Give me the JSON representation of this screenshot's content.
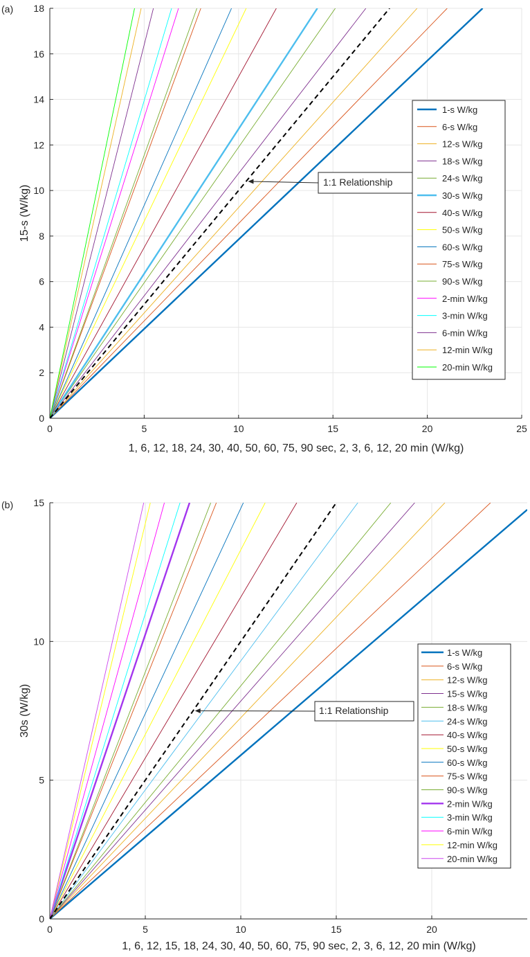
{
  "chart_data": [
    {
      "panel_label": "(a)",
      "type": "line",
      "xlabel": "1, 6, 12, 18, 24, 30, 40, 50, 60, 75, 90 sec, 2, 3, 6, 12, 20 min (W/kg)",
      "ylabel": "15-s (W/kg)",
      "xlim": [
        0,
        25
      ],
      "ylim": [
        0,
        18
      ],
      "xticks": [
        0,
        5,
        10,
        15,
        20,
        25
      ],
      "yticks": [
        0,
        2,
        4,
        6,
        8,
        10,
        12,
        14,
        16,
        18
      ],
      "grid": true,
      "legend_position": "right",
      "annotation": {
        "text": "1:1 Relationship",
        "arrow_to": [
          10.5,
          10.4
        ]
      },
      "reference_line": {
        "name": "1:1 Relationship",
        "slope": 1,
        "x_end": 18,
        "color": "#000000",
        "dashed": true
      },
      "series": [
        {
          "name": "1-s W/kg",
          "slope": 0.785,
          "color": "#0072BD",
          "bold": true
        },
        {
          "name": "6-s W/kg",
          "slope": 0.855,
          "color": "#D95319"
        },
        {
          "name": "12-s W/kg",
          "slope": 0.925,
          "color": "#EDB120"
        },
        {
          "name": "18-s W/kg",
          "slope": 1.075,
          "color": "#7E2F8E"
        },
        {
          "name": "24-s W/kg",
          "slope": 1.19,
          "color": "#77AC30"
        },
        {
          "name": "30-s W/kg",
          "slope": 1.27,
          "color": "#4DBEEE",
          "bold": true
        },
        {
          "name": "40-s W/kg",
          "slope": 1.5,
          "color": "#A2142F"
        },
        {
          "name": "50-s W/kg",
          "slope": 1.73,
          "color": "#FFFF00"
        },
        {
          "name": "60-s W/kg",
          "slope": 1.87,
          "color": "#0072BD"
        },
        {
          "name": "75-s W/kg",
          "slope": 2.25,
          "color": "#D95319"
        },
        {
          "name": "90-s W/kg",
          "slope": 2.31,
          "color": "#77AC30"
        },
        {
          "name": "2-min W/kg",
          "slope": 2.64,
          "color": "#FF00FF"
        },
        {
          "name": "3-min W/kg",
          "slope": 2.79,
          "color": "#00FFFF"
        },
        {
          "name": "6-min W/kg",
          "slope": 3.28,
          "color": "#7E2F8E"
        },
        {
          "name": "12-min W/kg",
          "slope": 3.72,
          "color": "#EDB120"
        },
        {
          "name": "20-min W/kg",
          "slope": 4.01,
          "color": "#00FF00"
        }
      ]
    },
    {
      "panel_label": "(b)",
      "type": "line",
      "xlabel": "1, 6, 12, 15, 18, 24, 30, 40, 50, 60, 75, 90 sec, 2, 3, 6, 12, 20 min (W/kg)",
      "ylabel": "30s (W/kg)",
      "xlim": [
        0,
        25
      ],
      "ylim": [
        0,
        15
      ],
      "xticks": [
        0,
        5,
        10,
        15,
        20
      ],
      "yticks": [
        0,
        5,
        10,
        15
      ],
      "grid": true,
      "legend_position": "right",
      "annotation": {
        "text": "1:1 Relationship",
        "arrow_to": [
          7.6,
          7.5
        ]
      },
      "reference_line": {
        "name": "1:1 Relationship",
        "slope": 1,
        "x_end": 15,
        "color": "#000000",
        "dashed": true
      },
      "series": [
        {
          "name": "1-s W/kg",
          "slope": 0.59,
          "color": "#0072BD",
          "bold": true
        },
        {
          "name": "6-s W/kg",
          "slope": 0.65,
          "color": "#D95319"
        },
        {
          "name": "12-s W/kg",
          "slope": 0.725,
          "color": "#EDB120"
        },
        {
          "name": "15-s W/kg",
          "slope": 0.785,
          "color": "#7E2F8E"
        },
        {
          "name": "18-s W/kg",
          "slope": 0.84,
          "color": "#77AC30"
        },
        {
          "name": "24-s W/kg",
          "slope": 0.93,
          "color": "#4DBEEE"
        },
        {
          "name": "40-s W/kg",
          "slope": 1.16,
          "color": "#A2142F"
        },
        {
          "name": "50-s W/kg",
          "slope": 1.33,
          "color": "#FFFF00"
        },
        {
          "name": "60-s W/kg",
          "slope": 1.48,
          "color": "#0072BD"
        },
        {
          "name": "75-s W/kg",
          "slope": 1.72,
          "color": "#D95319"
        },
        {
          "name": "90-s W/kg",
          "slope": 1.78,
          "color": "#77AC30"
        },
        {
          "name": "2-min W/kg",
          "slope": 2.05,
          "color": "#A335EE",
          "bold": true
        },
        {
          "name": "3-min W/kg",
          "slope": 2.2,
          "color": "#00FFFF"
        },
        {
          "name": "6-min W/kg",
          "slope": 2.5,
          "color": "#FF00FF"
        },
        {
          "name": "12-min W/kg",
          "slope": 2.85,
          "color": "#FFFF00"
        },
        {
          "name": "20-min W/kg",
          "slope": 3.05,
          "color": "#CC44EE"
        }
      ]
    }
  ]
}
